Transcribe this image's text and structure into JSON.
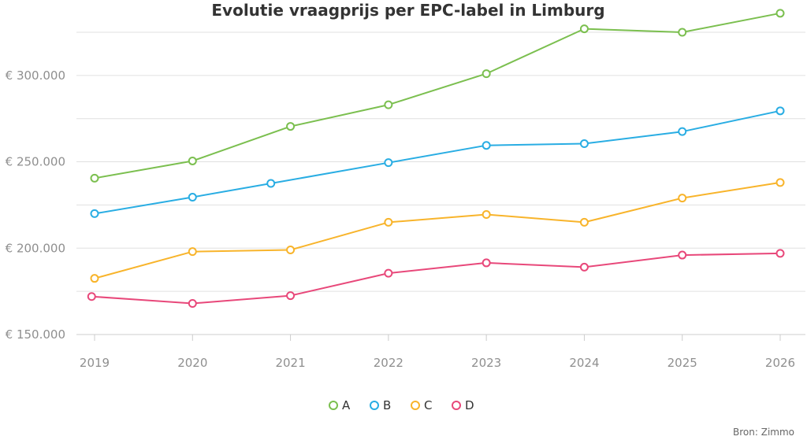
{
  "chart_data": {
    "type": "line",
    "title": "Evolutie vraagprijs per EPC-label in Limburg",
    "x": [
      "2019",
      "2020",
      "2021",
      "2022",
      "2023",
      "2024",
      "2025",
      "2026"
    ],
    "ylim": [
      150000,
      330000
    ],
    "yticks": [
      150000,
      200000,
      250000,
      300000
    ],
    "ytick_labels": [
      "€ 150.000",
      "€ 200.000",
      "€ 250.000",
      "€ 300.000"
    ],
    "grid": true,
    "legend_position": "bottom-center",
    "series": [
      {
        "name": "A",
        "color": "#7bbf4f",
        "points": [
          [
            2019.0,
            240500
          ],
          [
            2020.0,
            250500
          ],
          [
            2021.0,
            270500
          ],
          [
            2022.0,
            283000
          ],
          [
            2023.0,
            301000
          ],
          [
            2024.0,
            327000
          ],
          [
            2025.0,
            325000
          ],
          [
            2026.0,
            336000
          ]
        ]
      },
      {
        "name": "B",
        "color": "#29ade3",
        "points": [
          [
            2019.0,
            220000
          ],
          [
            2020.0,
            229500
          ],
          [
            2020.8,
            237500
          ],
          [
            2022.0,
            249500
          ],
          [
            2023.0,
            259500
          ],
          [
            2024.0,
            260500
          ],
          [
            2025.0,
            267500
          ],
          [
            2026.0,
            279500
          ]
        ]
      },
      {
        "name": "C",
        "color": "#f8b42b",
        "points": [
          [
            2019.0,
            182500
          ],
          [
            2020.0,
            198000
          ],
          [
            2021.0,
            199000
          ],
          [
            2022.0,
            215000
          ],
          [
            2023.0,
            219500
          ],
          [
            2024.0,
            215000
          ],
          [
            2025.0,
            229000
          ],
          [
            2026.0,
            238000
          ]
        ]
      },
      {
        "name": "D",
        "color": "#e8487a",
        "points": [
          [
            2018.97,
            172000
          ],
          [
            2020.0,
            168000
          ],
          [
            2021.0,
            172500
          ],
          [
            2022.0,
            185500
          ],
          [
            2023.0,
            191500
          ],
          [
            2024.0,
            189000
          ],
          [
            2025.0,
            196000
          ],
          [
            2026.0,
            197000
          ]
        ]
      }
    ],
    "source": "Bron: Zimmo"
  }
}
